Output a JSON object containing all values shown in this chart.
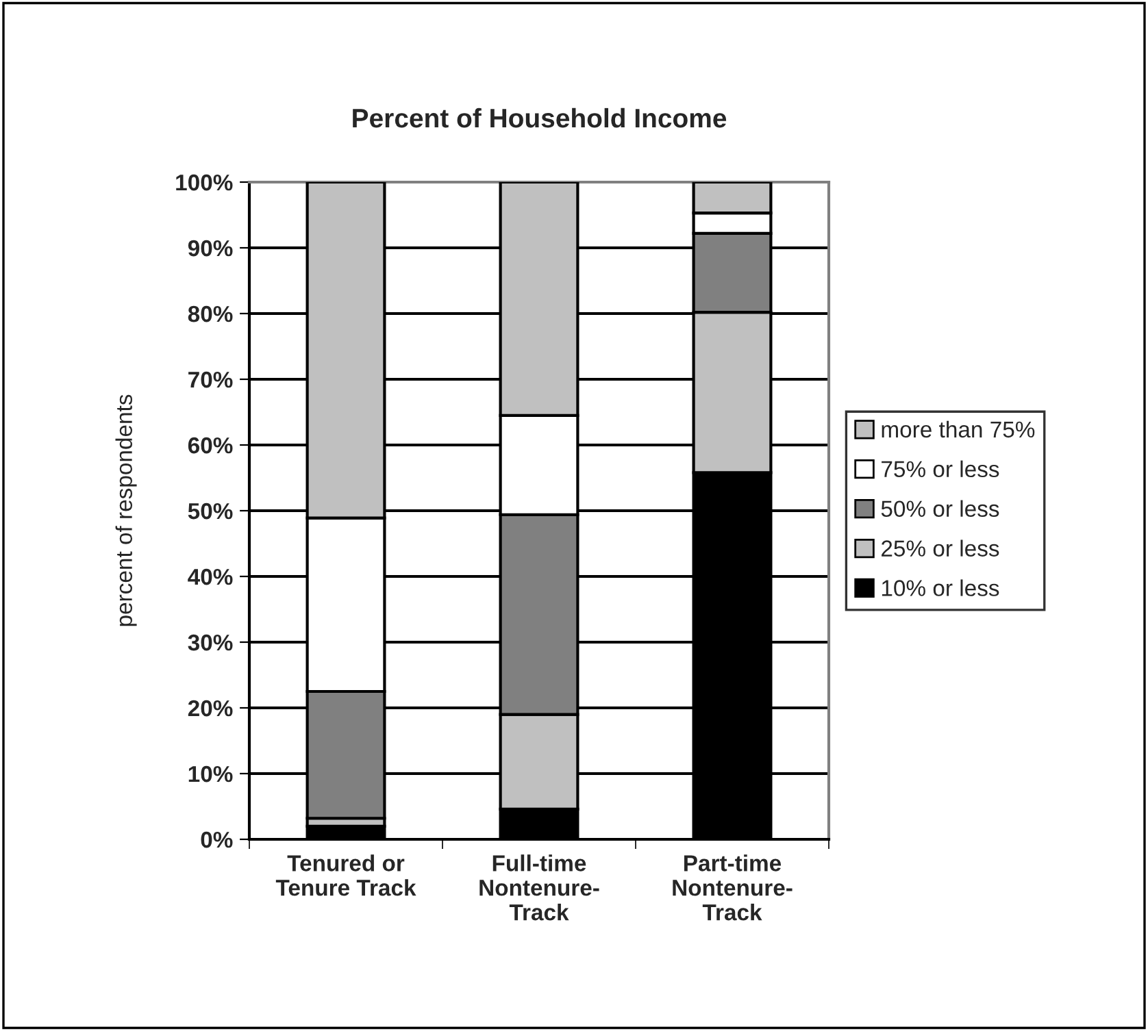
{
  "chart_data": {
    "type": "bar",
    "title": "Percent of Household Income",
    "ylabel": "percent of respondents",
    "categories": [
      "Tenured or\nTenure Track",
      "Full-time\nNontenure-\nTrack",
      "Part-time\nNontenure-\nTrack"
    ],
    "stacked": true,
    "series": [
      {
        "name": "10% or less",
        "color": "#000000",
        "values": [
          2,
          4.6,
          55.8
        ]
      },
      {
        "name": "25% or less",
        "color": "#c0c0c0",
        "values": [
          1.2,
          14.4,
          24.4
        ]
      },
      {
        "name": "50% or less",
        "color": "#808080",
        "values": [
          19.3,
          30.4,
          12.0
        ]
      },
      {
        "name": "75% or less",
        "color": "#ffffff",
        "values": [
          26.4,
          15.1,
          3.1
        ]
      },
      {
        "name": "more than 75%",
        "color": "#c0c0c0",
        "values": [
          51.1,
          35.5,
          4.7
        ]
      }
    ],
    "ylim": [
      0,
      100
    ],
    "yticks": [
      {
        "value": 0,
        "label": "0%"
      },
      {
        "value": 10,
        "label": "10%"
      },
      {
        "value": 20,
        "label": "20%"
      },
      {
        "value": 30,
        "label": "30%"
      },
      {
        "value": 40,
        "label": "40%"
      },
      {
        "value": 50,
        "label": "50%"
      },
      {
        "value": 60,
        "label": "60%"
      },
      {
        "value": 70,
        "label": "70%"
      },
      {
        "value": 80,
        "label": "80%"
      },
      {
        "value": 90,
        "label": "90%"
      },
      {
        "value": 100,
        "label": "100%"
      }
    ],
    "grid": "y",
    "legend": "right"
  }
}
